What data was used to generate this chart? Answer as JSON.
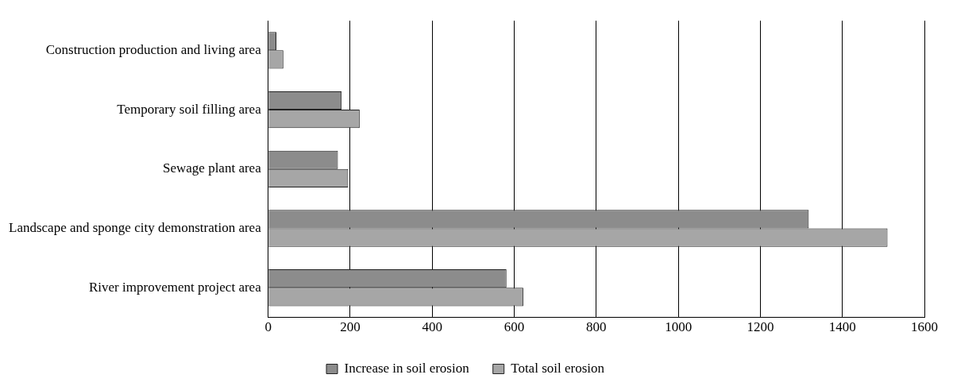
{
  "chart_data": {
    "type": "bar",
    "orientation": "horizontal",
    "categories": [
      "Construction production and living area",
      "Temporary soil filling area",
      "Sewage plant area",
      "Landscape and sponge city demonstration area",
      "River improvement project area"
    ],
    "series": [
      {
        "name": "Increase in soil erosion",
        "color": "#8c8c8c",
        "values": [
          20,
          179,
          170,
          1318,
          581
        ]
      },
      {
        "name": "Total soil erosion",
        "color": "#a6a6a6",
        "values": [
          37,
          223,
          195,
          1510,
          622
        ]
      }
    ],
    "xlim": [
      0,
      1600
    ],
    "xticks": [
      0,
      200,
      400,
      600,
      800,
      1000,
      1200,
      1400,
      1600
    ],
    "grid": "x",
    "legend": "bottom"
  }
}
